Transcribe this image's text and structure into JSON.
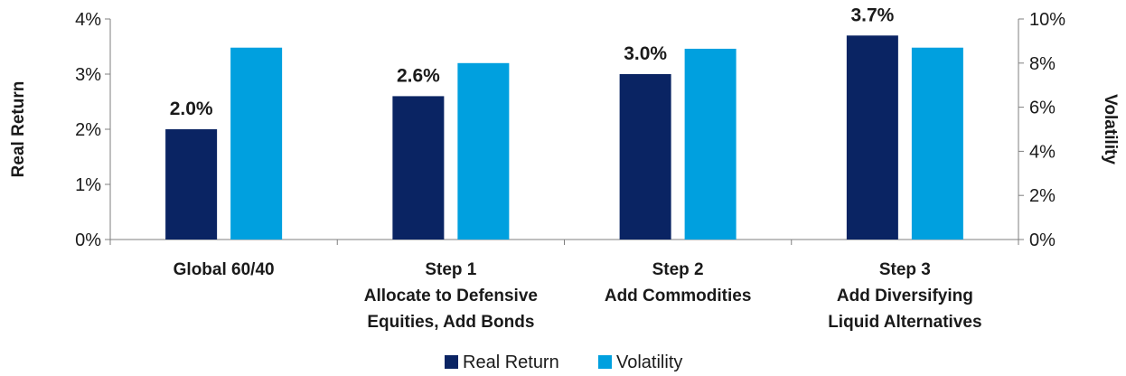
{
  "chart_data": {
    "type": "bar",
    "categories": [
      [
        "Global 60/40"
      ],
      [
        "Step 1",
        "Allocate to Defensive",
        "Equities, Add Bonds"
      ],
      [
        "Step 2",
        "Add Commodities"
      ],
      [
        "Step 3",
        "Add Diversifying",
        "Liquid Alternatives"
      ]
    ],
    "series": [
      {
        "name": "Real Return",
        "axis": "left",
        "color": "#0a2463",
        "values": [
          2.0,
          2.6,
          3.0,
          3.7
        ],
        "labels": [
          "2.0%",
          "2.6%",
          "3.0%",
          "3.7%"
        ]
      },
      {
        "name": "Volatility",
        "axis": "right",
        "color": "#00a0df",
        "values": [
          8.7,
          8.0,
          8.65,
          8.7
        ]
      }
    ],
    "ylabel": "Real Return",
    "y2label": "Volatility",
    "ylim": [
      0,
      4
    ],
    "y2lim": [
      0,
      10
    ],
    "yticks": [
      "0%",
      "1%",
      "2%",
      "3%",
      "4%"
    ],
    "y2ticks": [
      "0%",
      "2%",
      "4%",
      "6%",
      "8%",
      "10%"
    ],
    "legend": "bottom-center",
    "grid": false
  }
}
